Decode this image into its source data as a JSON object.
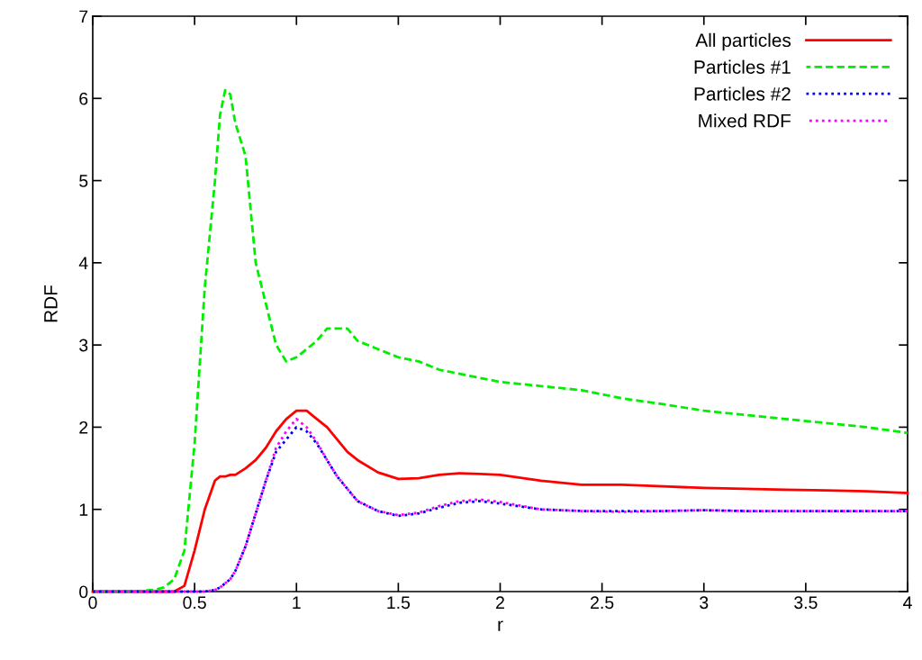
{
  "chart_data": {
    "type": "line",
    "xlabel": "r",
    "ylabel": "RDF",
    "xlim": [
      0,
      4
    ],
    "ylim": [
      0,
      7
    ],
    "xticks": [
      0,
      0.5,
      1,
      1.5,
      2,
      2.5,
      3,
      3.5,
      4
    ],
    "yticks": [
      0,
      1,
      2,
      3,
      4,
      5,
      6,
      7
    ],
    "grid": false,
    "legend": "top right",
    "marker": "none",
    "x": [
      0,
      0.1,
      0.2,
      0.3,
      0.35,
      0.4,
      0.45,
      0.5,
      0.55,
      0.6,
      0.625,
      0.65,
      0.675,
      0.7,
      0.75,
      0.8,
      0.85,
      0.9,
      0.95,
      1.0,
      1.05,
      1.1,
      1.15,
      1.2,
      1.25,
      1.3,
      1.4,
      1.5,
      1.6,
      1.7,
      1.8,
      1.9,
      2.0,
      2.2,
      2.4,
      2.6,
      2.8,
      3.0,
      3.2,
      3.4,
      3.6,
      3.8,
      4.0
    ],
    "series": [
      {
        "name": "All particles",
        "color": "#ff0000",
        "line_style": "solid",
        "values": [
          0,
          0,
          0,
          0,
          0,
          0,
          0.07,
          0.5,
          1.0,
          1.35,
          1.4,
          1.4,
          1.42,
          1.42,
          1.5,
          1.6,
          1.75,
          1.95,
          2.1,
          2.2,
          2.2,
          2.1,
          2.0,
          1.85,
          1.7,
          1.6,
          1.45,
          1.37,
          1.38,
          1.42,
          1.44,
          1.43,
          1.42,
          1.35,
          1.3,
          1.3,
          1.28,
          1.26,
          1.25,
          1.24,
          1.23,
          1.22,
          1.2
        ]
      },
      {
        "name": "Particles #1",
        "color": "#00ee00",
        "line_style": "dashed",
        "values": [
          0,
          0,
          0,
          0.02,
          0.05,
          0.15,
          0.5,
          1.8,
          3.7,
          5.0,
          5.8,
          6.1,
          6.05,
          5.7,
          5.3,
          4.0,
          3.5,
          3.0,
          2.8,
          2.85,
          2.95,
          3.05,
          3.2,
          3.2,
          3.2,
          3.05,
          2.95,
          2.85,
          2.8,
          2.7,
          2.65,
          2.6,
          2.55,
          2.5,
          2.45,
          2.35,
          2.28,
          2.2,
          2.15,
          2.1,
          2.05,
          2.0,
          1.93
        ]
      },
      {
        "name": "Particles #2",
        "color": "#0000ff",
        "line_style": "dotted",
        "values": [
          0,
          0,
          0,
          0,
          0,
          0,
          0,
          0,
          0,
          0.02,
          0.05,
          0.1,
          0.15,
          0.25,
          0.55,
          0.95,
          1.35,
          1.7,
          1.85,
          2.0,
          1.95,
          1.8,
          1.6,
          1.4,
          1.25,
          1.1,
          0.98,
          0.92,
          0.95,
          1.02,
          1.08,
          1.1,
          1.07,
          1.0,
          0.98,
          0.98,
          0.98,
          0.99,
          0.98,
          0.98,
          0.98,
          0.98,
          0.98
        ]
      },
      {
        "name": "Mixed RDF",
        "color": "#ff00ff",
        "line_style": "dotted",
        "values": [
          0,
          0,
          0,
          0,
          0,
          0,
          0,
          0,
          0,
          0.02,
          0.05,
          0.1,
          0.15,
          0.25,
          0.55,
          0.95,
          1.35,
          1.75,
          1.95,
          2.1,
          2.0,
          1.82,
          1.6,
          1.4,
          1.25,
          1.1,
          0.98,
          0.93,
          0.96,
          1.04,
          1.1,
          1.12,
          1.09,
          1.0,
          0.98,
          0.97,
          0.98,
          0.99,
          0.98,
          0.98,
          0.98,
          0.98,
          0.98
        ]
      }
    ]
  }
}
